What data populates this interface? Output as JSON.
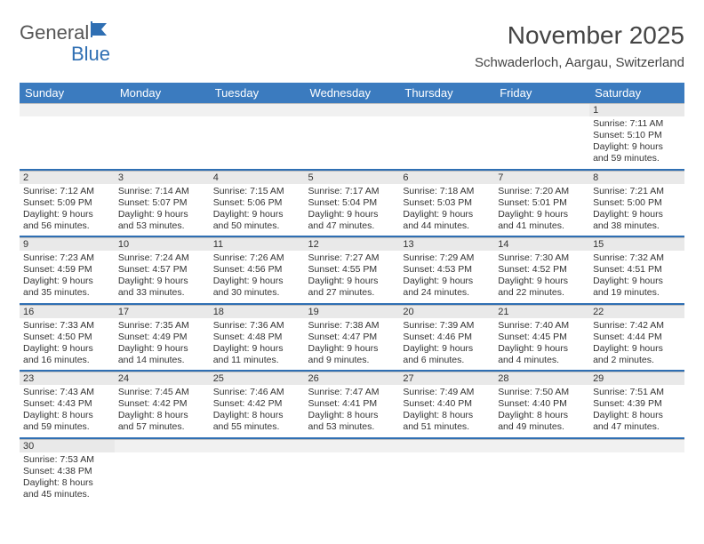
{
  "logo": {
    "text1": "General",
    "text2": "Blue"
  },
  "title": "November 2025",
  "location": "Schwaderloch, Aargau, Switzerland",
  "colors": {
    "header_bg": "#3b7bbf",
    "header_text": "#ffffff",
    "day_number_bg": "#e9e9e9",
    "week_sep": "#2f6fb3",
    "text": "#333333",
    "page_bg": "#ffffff"
  },
  "typography": {
    "title_fontsize": 28,
    "location_fontsize": 15,
    "header_fontsize": 13,
    "cell_fontsize": 10.5
  },
  "days_of_week": [
    "Sunday",
    "Monday",
    "Tuesday",
    "Wednesday",
    "Thursday",
    "Friday",
    "Saturday"
  ],
  "weeks": [
    [
      null,
      null,
      null,
      null,
      null,
      null,
      {
        "n": "1",
        "sr": "Sunrise: 7:11 AM",
        "ss": "Sunset: 5:10 PM",
        "d1": "Daylight: 9 hours",
        "d2": "and 59 minutes."
      }
    ],
    [
      {
        "n": "2",
        "sr": "Sunrise: 7:12 AM",
        "ss": "Sunset: 5:09 PM",
        "d1": "Daylight: 9 hours",
        "d2": "and 56 minutes."
      },
      {
        "n": "3",
        "sr": "Sunrise: 7:14 AM",
        "ss": "Sunset: 5:07 PM",
        "d1": "Daylight: 9 hours",
        "d2": "and 53 minutes."
      },
      {
        "n": "4",
        "sr": "Sunrise: 7:15 AM",
        "ss": "Sunset: 5:06 PM",
        "d1": "Daylight: 9 hours",
        "d2": "and 50 minutes."
      },
      {
        "n": "5",
        "sr": "Sunrise: 7:17 AM",
        "ss": "Sunset: 5:04 PM",
        "d1": "Daylight: 9 hours",
        "d2": "and 47 minutes."
      },
      {
        "n": "6",
        "sr": "Sunrise: 7:18 AM",
        "ss": "Sunset: 5:03 PM",
        "d1": "Daylight: 9 hours",
        "d2": "and 44 minutes."
      },
      {
        "n": "7",
        "sr": "Sunrise: 7:20 AM",
        "ss": "Sunset: 5:01 PM",
        "d1": "Daylight: 9 hours",
        "d2": "and 41 minutes."
      },
      {
        "n": "8",
        "sr": "Sunrise: 7:21 AM",
        "ss": "Sunset: 5:00 PM",
        "d1": "Daylight: 9 hours",
        "d2": "and 38 minutes."
      }
    ],
    [
      {
        "n": "9",
        "sr": "Sunrise: 7:23 AM",
        "ss": "Sunset: 4:59 PM",
        "d1": "Daylight: 9 hours",
        "d2": "and 35 minutes."
      },
      {
        "n": "10",
        "sr": "Sunrise: 7:24 AM",
        "ss": "Sunset: 4:57 PM",
        "d1": "Daylight: 9 hours",
        "d2": "and 33 minutes."
      },
      {
        "n": "11",
        "sr": "Sunrise: 7:26 AM",
        "ss": "Sunset: 4:56 PM",
        "d1": "Daylight: 9 hours",
        "d2": "and 30 minutes."
      },
      {
        "n": "12",
        "sr": "Sunrise: 7:27 AM",
        "ss": "Sunset: 4:55 PM",
        "d1": "Daylight: 9 hours",
        "d2": "and 27 minutes."
      },
      {
        "n": "13",
        "sr": "Sunrise: 7:29 AM",
        "ss": "Sunset: 4:53 PM",
        "d1": "Daylight: 9 hours",
        "d2": "and 24 minutes."
      },
      {
        "n": "14",
        "sr": "Sunrise: 7:30 AM",
        "ss": "Sunset: 4:52 PM",
        "d1": "Daylight: 9 hours",
        "d2": "and 22 minutes."
      },
      {
        "n": "15",
        "sr": "Sunrise: 7:32 AM",
        "ss": "Sunset: 4:51 PM",
        "d1": "Daylight: 9 hours",
        "d2": "and 19 minutes."
      }
    ],
    [
      {
        "n": "16",
        "sr": "Sunrise: 7:33 AM",
        "ss": "Sunset: 4:50 PM",
        "d1": "Daylight: 9 hours",
        "d2": "and 16 minutes."
      },
      {
        "n": "17",
        "sr": "Sunrise: 7:35 AM",
        "ss": "Sunset: 4:49 PM",
        "d1": "Daylight: 9 hours",
        "d2": "and 14 minutes."
      },
      {
        "n": "18",
        "sr": "Sunrise: 7:36 AM",
        "ss": "Sunset: 4:48 PM",
        "d1": "Daylight: 9 hours",
        "d2": "and 11 minutes."
      },
      {
        "n": "19",
        "sr": "Sunrise: 7:38 AM",
        "ss": "Sunset: 4:47 PM",
        "d1": "Daylight: 9 hours",
        "d2": "and 9 minutes."
      },
      {
        "n": "20",
        "sr": "Sunrise: 7:39 AM",
        "ss": "Sunset: 4:46 PM",
        "d1": "Daylight: 9 hours",
        "d2": "and 6 minutes."
      },
      {
        "n": "21",
        "sr": "Sunrise: 7:40 AM",
        "ss": "Sunset: 4:45 PM",
        "d1": "Daylight: 9 hours",
        "d2": "and 4 minutes."
      },
      {
        "n": "22",
        "sr": "Sunrise: 7:42 AM",
        "ss": "Sunset: 4:44 PM",
        "d1": "Daylight: 9 hours",
        "d2": "and 2 minutes."
      }
    ],
    [
      {
        "n": "23",
        "sr": "Sunrise: 7:43 AM",
        "ss": "Sunset: 4:43 PM",
        "d1": "Daylight: 8 hours",
        "d2": "and 59 minutes."
      },
      {
        "n": "24",
        "sr": "Sunrise: 7:45 AM",
        "ss": "Sunset: 4:42 PM",
        "d1": "Daylight: 8 hours",
        "d2": "and 57 minutes."
      },
      {
        "n": "25",
        "sr": "Sunrise: 7:46 AM",
        "ss": "Sunset: 4:42 PM",
        "d1": "Daylight: 8 hours",
        "d2": "and 55 minutes."
      },
      {
        "n": "26",
        "sr": "Sunrise: 7:47 AM",
        "ss": "Sunset: 4:41 PM",
        "d1": "Daylight: 8 hours",
        "d2": "and 53 minutes."
      },
      {
        "n": "27",
        "sr": "Sunrise: 7:49 AM",
        "ss": "Sunset: 4:40 PM",
        "d1": "Daylight: 8 hours",
        "d2": "and 51 minutes."
      },
      {
        "n": "28",
        "sr": "Sunrise: 7:50 AM",
        "ss": "Sunset: 4:40 PM",
        "d1": "Daylight: 8 hours",
        "d2": "and 49 minutes."
      },
      {
        "n": "29",
        "sr": "Sunrise: 7:51 AM",
        "ss": "Sunset: 4:39 PM",
        "d1": "Daylight: 8 hours",
        "d2": "and 47 minutes."
      }
    ],
    [
      {
        "n": "30",
        "sr": "Sunrise: 7:53 AM",
        "ss": "Sunset: 4:38 PM",
        "d1": "Daylight: 8 hours",
        "d2": "and 45 minutes."
      },
      null,
      null,
      null,
      null,
      null,
      null
    ]
  ]
}
